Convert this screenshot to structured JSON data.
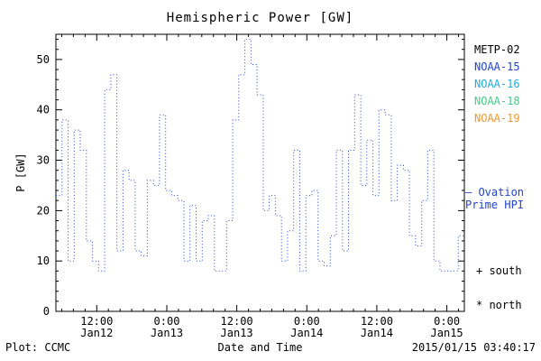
{
  "footer": {
    "left": "Plot: CCMC",
    "right": "2015/01/15 03:40:17"
  },
  "legend": {
    "satellites": [
      {
        "label": "METP-02",
        "color": "#000000"
      },
      {
        "label": "NOAA-15",
        "color": "#2244cc"
      },
      {
        "label": "NOAA-16",
        "color": "#22aadd"
      },
      {
        "label": "NOAA-18",
        "color": "#44cc88"
      },
      {
        "label": "NOAA-19",
        "color": "#ee9933"
      }
    ],
    "ovation_line1": "– Ovation",
    "ovation_line2": "Prime HPI",
    "ovation_color": "#2244cc",
    "south_marker": "+ south",
    "north_marker": "* north"
  },
  "chart_data": {
    "type": "line",
    "style": "dotted-step",
    "title": "Hemispheric Power [GW]",
    "xlabel": "Date and Time",
    "ylabel": "P [GW]",
    "series_name": "Ovation Prime HPI",
    "color": "#2244cc",
    "ylim": [
      0,
      55
    ],
    "yticks": [
      0,
      10,
      20,
      30,
      40,
      50
    ],
    "x_hours_total": 70,
    "xticks": [
      {
        "t": 7,
        "time": "12:00",
        "date": "Jan12"
      },
      {
        "t": 19,
        "time": "0:00",
        "date": "Jan13"
      },
      {
        "t": 31,
        "time": "12:00",
        "date": "Jan13"
      },
      {
        "t": 43,
        "time": "0:00",
        "date": "Jan14"
      },
      {
        "t": 55,
        "time": "12:00",
        "date": "Jan14"
      },
      {
        "t": 67,
        "time": "0:00",
        "date": "Jan15"
      }
    ],
    "values": [
      23,
      38,
      10,
      36,
      32,
      14,
      10,
      8,
      44,
      47,
      12,
      28,
      26,
      12,
      11,
      26,
      25,
      39,
      24,
      23,
      22,
      10,
      21,
      10,
      18,
      19,
      8,
      8,
      18,
      38,
      47,
      54,
      49,
      43,
      20,
      23,
      19,
      10,
      16,
      32,
      8,
      23,
      24,
      10,
      9,
      15,
      32,
      12,
      32,
      43,
      25,
      34,
      23,
      40,
      39,
      22,
      29,
      28,
      15,
      13,
      22,
      32,
      10,
      8,
      8,
      8,
      15
    ]
  }
}
